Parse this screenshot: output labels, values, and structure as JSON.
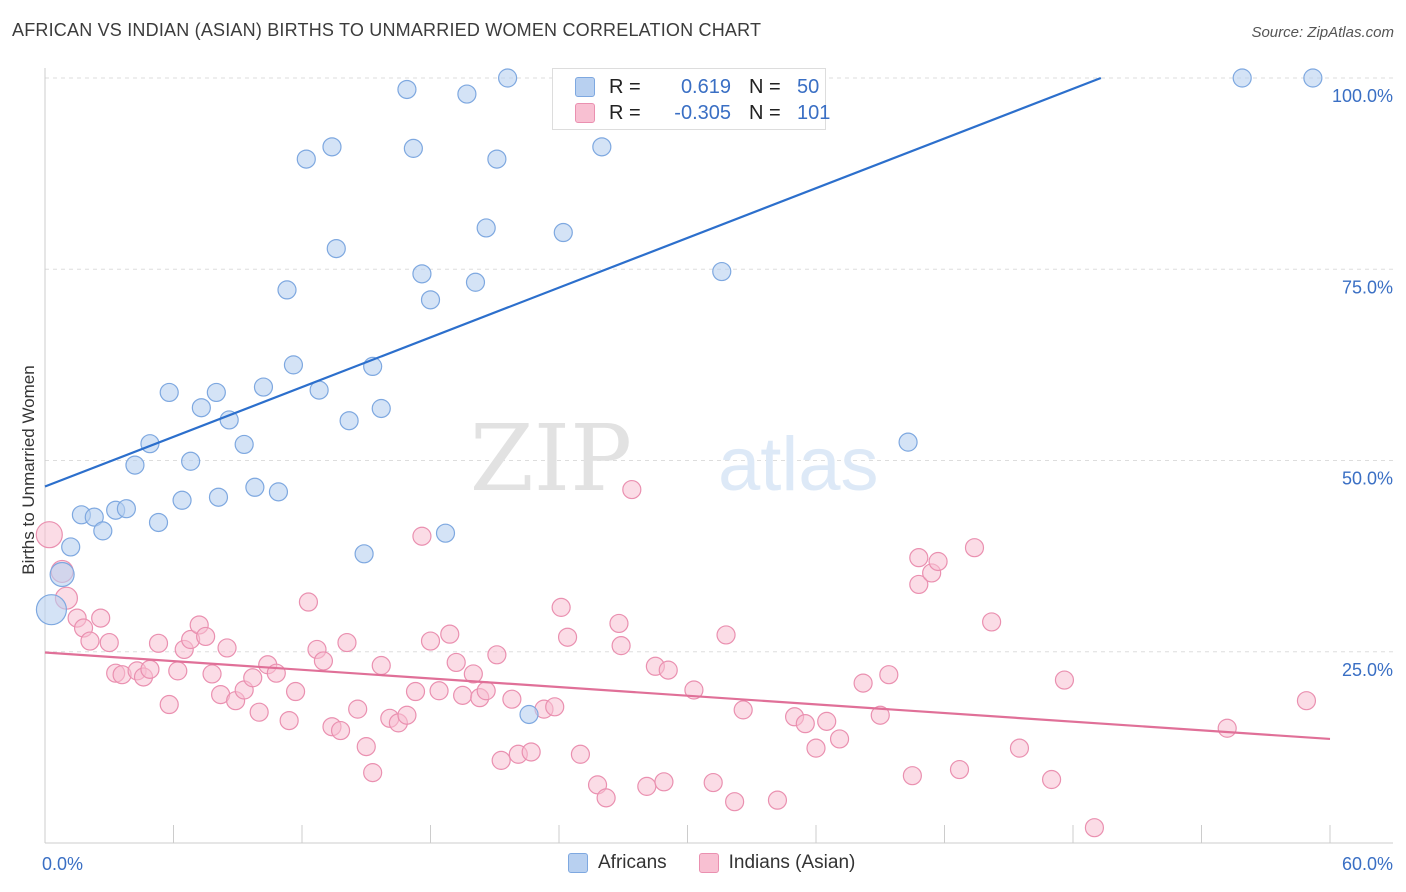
{
  "header": {
    "title": "AFRICAN VS INDIAN (ASIAN) BIRTHS TO UNMARRIED WOMEN CORRELATION CHART",
    "source": "Source: ZipAtlas.com"
  },
  "watermark": {
    "zip": "ZIP",
    "atlas": "atlas"
  },
  "legend": {
    "africans": {
      "r_label": "R =",
      "r_value": "0.619",
      "n_label": "N =",
      "n_value": "50"
    },
    "indians": {
      "r_label": "R =",
      "r_value": "-0.305",
      "n_label": "N =",
      "n_value": "101"
    }
  },
  "colors": {
    "africans_fill": "#b8d0f0",
    "africans_stroke": "#7ea8e0",
    "africans_line": "#2c6fcc",
    "indians_fill": "#f8c0d2",
    "indians_stroke": "#ea90b0",
    "indians_line": "#e07098",
    "tick_label": "#3a6fc4"
  },
  "chart_data": {
    "type": "scatter",
    "title": "AFRICAN VS INDIAN (ASIAN) BIRTHS TO UNMARRIED WOMEN CORRELATION CHART",
    "ylabel": "Births to Unmarried Women",
    "xlabel": "",
    "xlim": [
      0,
      60
    ],
    "ylim": [
      0,
      103
    ],
    "x_ticks": [
      {
        "value": 0,
        "label": "0.0%"
      },
      {
        "value": 60,
        "label": "60.0%"
      }
    ],
    "y_ticks": [
      {
        "value": 25,
        "label": "25.0%"
      },
      {
        "value": 50,
        "label": "50.0%"
      },
      {
        "value": 75,
        "label": "75.0%"
      },
      {
        "value": 100,
        "label": "100.0%"
      }
    ],
    "grid": true,
    "legend_position": "top-center",
    "series": [
      {
        "name": "Africans",
        "r": 0.619,
        "n": 50,
        "trend": {
          "x0": 0,
          "y0": 46.6,
          "x1": 49.3,
          "y1": 100
        },
        "points": [
          [
            0.3,
            30.5
          ],
          [
            0.8,
            35.1
          ],
          [
            1.2,
            38.7
          ],
          [
            1.7,
            42.9
          ],
          [
            2.3,
            42.6
          ],
          [
            2.7,
            40.8
          ],
          [
            3.3,
            43.5
          ],
          [
            3.8,
            43.7
          ],
          [
            4.2,
            49.4
          ],
          [
            4.9,
            52.2
          ],
          [
            5.3,
            41.9
          ],
          [
            5.8,
            58.9
          ],
          [
            6.4,
            44.8
          ],
          [
            6.8,
            49.9
          ],
          [
            7.3,
            56.9
          ],
          [
            8.0,
            58.9
          ],
          [
            8.1,
            45.2
          ],
          [
            8.6,
            55.3
          ],
          [
            9.3,
            52.1
          ],
          [
            9.8,
            46.5
          ],
          [
            10.2,
            59.6
          ],
          [
            10.9,
            45.9
          ],
          [
            11.3,
            72.3
          ],
          [
            11.6,
            62.5
          ],
          [
            12.2,
            89.4
          ],
          [
            12.8,
            59.2
          ],
          [
            13.4,
            91.0
          ],
          [
            13.6,
            77.7
          ],
          [
            14.2,
            55.2
          ],
          [
            14.9,
            37.8
          ],
          [
            15.3,
            62.3
          ],
          [
            15.7,
            56.8
          ],
          [
            16.9,
            98.5
          ],
          [
            17.2,
            90.8
          ],
          [
            17.6,
            74.4
          ],
          [
            18.0,
            71.0
          ],
          [
            18.7,
            40.5
          ],
          [
            19.7,
            97.9
          ],
          [
            20.1,
            73.3
          ],
          [
            20.6,
            80.4
          ],
          [
            21.1,
            89.4
          ],
          [
            21.6,
            100.0
          ],
          [
            22.6,
            16.8
          ],
          [
            24.2,
            79.8
          ],
          [
            26.0,
            91.0
          ],
          [
            31.6,
            74.7
          ],
          [
            35.8,
            100.0
          ],
          [
            40.3,
            52.4
          ],
          [
            55.9,
            100.0
          ],
          [
            59.2,
            100.0
          ]
        ]
      },
      {
        "name": "Indians (Asian)",
        "r": -0.305,
        "n": 101,
        "trend": {
          "x0": 0,
          "y0": 24.9,
          "x1": 60,
          "y1": 13.6
        },
        "points": [
          [
            0.2,
            40.3
          ],
          [
            0.8,
            35.5
          ],
          [
            1.0,
            32.0
          ],
          [
            1.5,
            29.4
          ],
          [
            1.8,
            28.1
          ],
          [
            2.1,
            26.4
          ],
          [
            2.6,
            29.4
          ],
          [
            3.0,
            26.2
          ],
          [
            3.3,
            22.2
          ],
          [
            3.6,
            22.0
          ],
          [
            4.3,
            22.5
          ],
          [
            4.6,
            21.7
          ],
          [
            4.9,
            22.7
          ],
          [
            5.3,
            26.1
          ],
          [
            5.8,
            18.1
          ],
          [
            6.2,
            22.5
          ],
          [
            6.5,
            25.3
          ],
          [
            6.8,
            26.6
          ],
          [
            7.2,
            28.5
          ],
          [
            7.5,
            27.0
          ],
          [
            7.8,
            22.1
          ],
          [
            8.2,
            19.4
          ],
          [
            8.5,
            25.5
          ],
          [
            8.9,
            18.6
          ],
          [
            9.3,
            20.0
          ],
          [
            9.7,
            21.6
          ],
          [
            10.0,
            17.1
          ],
          [
            10.4,
            23.3
          ],
          [
            10.8,
            22.2
          ],
          [
            11.4,
            16.0
          ],
          [
            11.7,
            19.8
          ],
          [
            12.3,
            31.5
          ],
          [
            12.7,
            25.3
          ],
          [
            13.0,
            23.8
          ],
          [
            13.4,
            15.2
          ],
          [
            13.8,
            14.7
          ],
          [
            14.1,
            26.2
          ],
          [
            14.6,
            17.5
          ],
          [
            15.0,
            12.6
          ],
          [
            15.3,
            9.2
          ],
          [
            15.7,
            23.2
          ],
          [
            16.1,
            16.3
          ],
          [
            16.5,
            15.7
          ],
          [
            16.9,
            16.7
          ],
          [
            17.3,
            19.8
          ],
          [
            17.6,
            40.1
          ],
          [
            18.0,
            26.4
          ],
          [
            18.4,
            19.9
          ],
          [
            18.9,
            27.3
          ],
          [
            19.2,
            23.6
          ],
          [
            19.5,
            19.3
          ],
          [
            20.0,
            22.1
          ],
          [
            20.3,
            19.0
          ],
          [
            20.6,
            19.9
          ],
          [
            21.1,
            24.6
          ],
          [
            21.3,
            10.8
          ],
          [
            21.8,
            18.8
          ],
          [
            22.1,
            11.6
          ],
          [
            22.7,
            11.9
          ],
          [
            23.3,
            17.5
          ],
          [
            23.8,
            17.8
          ],
          [
            24.1,
            30.8
          ],
          [
            24.4,
            26.9
          ],
          [
            25.0,
            11.6
          ],
          [
            25.8,
            7.6
          ],
          [
            26.2,
            5.9
          ],
          [
            26.8,
            28.7
          ],
          [
            26.9,
            25.8
          ],
          [
            27.4,
            46.2
          ],
          [
            28.1,
            7.4
          ],
          [
            28.5,
            23.1
          ],
          [
            28.9,
            8.0
          ],
          [
            29.1,
            22.6
          ],
          [
            30.3,
            20.0
          ],
          [
            31.2,
            7.9
          ],
          [
            31.8,
            27.2
          ],
          [
            32.2,
            5.4
          ],
          [
            32.6,
            17.4
          ],
          [
            34.2,
            5.6
          ],
          [
            35.0,
            16.5
          ],
          [
            35.5,
            15.6
          ],
          [
            36.0,
            12.4
          ],
          [
            36.5,
            15.9
          ],
          [
            37.1,
            13.6
          ],
          [
            38.2,
            20.9
          ],
          [
            39.0,
            16.7
          ],
          [
            39.4,
            22.0
          ],
          [
            40.5,
            8.8
          ],
          [
            40.8,
            37.3
          ],
          [
            40.8,
            33.8
          ],
          [
            41.4,
            35.3
          ],
          [
            41.7,
            36.8
          ],
          [
            42.7,
            9.6
          ],
          [
            43.4,
            38.6
          ],
          [
            44.2,
            28.9
          ],
          [
            45.5,
            12.4
          ],
          [
            47.0,
            8.3
          ],
          [
            47.6,
            21.3
          ],
          [
            49.0,
            2.0
          ],
          [
            55.2,
            15.0
          ],
          [
            58.9,
            18.6
          ]
        ]
      }
    ]
  },
  "bottom_legend": {
    "africans": "Africans",
    "indians": "Indians (Asian)"
  }
}
